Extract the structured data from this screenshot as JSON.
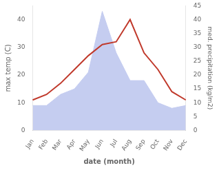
{
  "chart_data": {
    "type": "line",
    "xlabel": "date (month)",
    "ylabel": "max temp (C)",
    "y2label": "med. precipitation (kg/m2)",
    "categories": [
      "Jan",
      "Feb",
      "Mar",
      "Apr",
      "May",
      "Jun",
      "Jul",
      "Aug",
      "Sep",
      "Oct",
      "Nov",
      "Dec"
    ],
    "series": [
      {
        "type": "area",
        "axis": "y2",
        "color": "#c5cdf0",
        "values": [
          9,
          9,
          13,
          15,
          21,
          43,
          28,
          18,
          18,
          10,
          8,
          9
        ]
      },
      {
        "type": "line",
        "color": "#c0392b",
        "values": [
          11,
          13,
          17,
          22,
          27,
          31,
          32,
          40,
          28,
          22,
          14,
          11
        ]
      }
    ],
    "ylim": [
      0,
      45
    ],
    "yticks": [
      0,
      10,
      20,
      30,
      40
    ],
    "y2lim": [
      0,
      45
    ],
    "y2ticks": [
      0,
      5,
      10,
      15,
      20,
      25,
      30,
      35,
      40,
      45
    ],
    "grid": false
  }
}
